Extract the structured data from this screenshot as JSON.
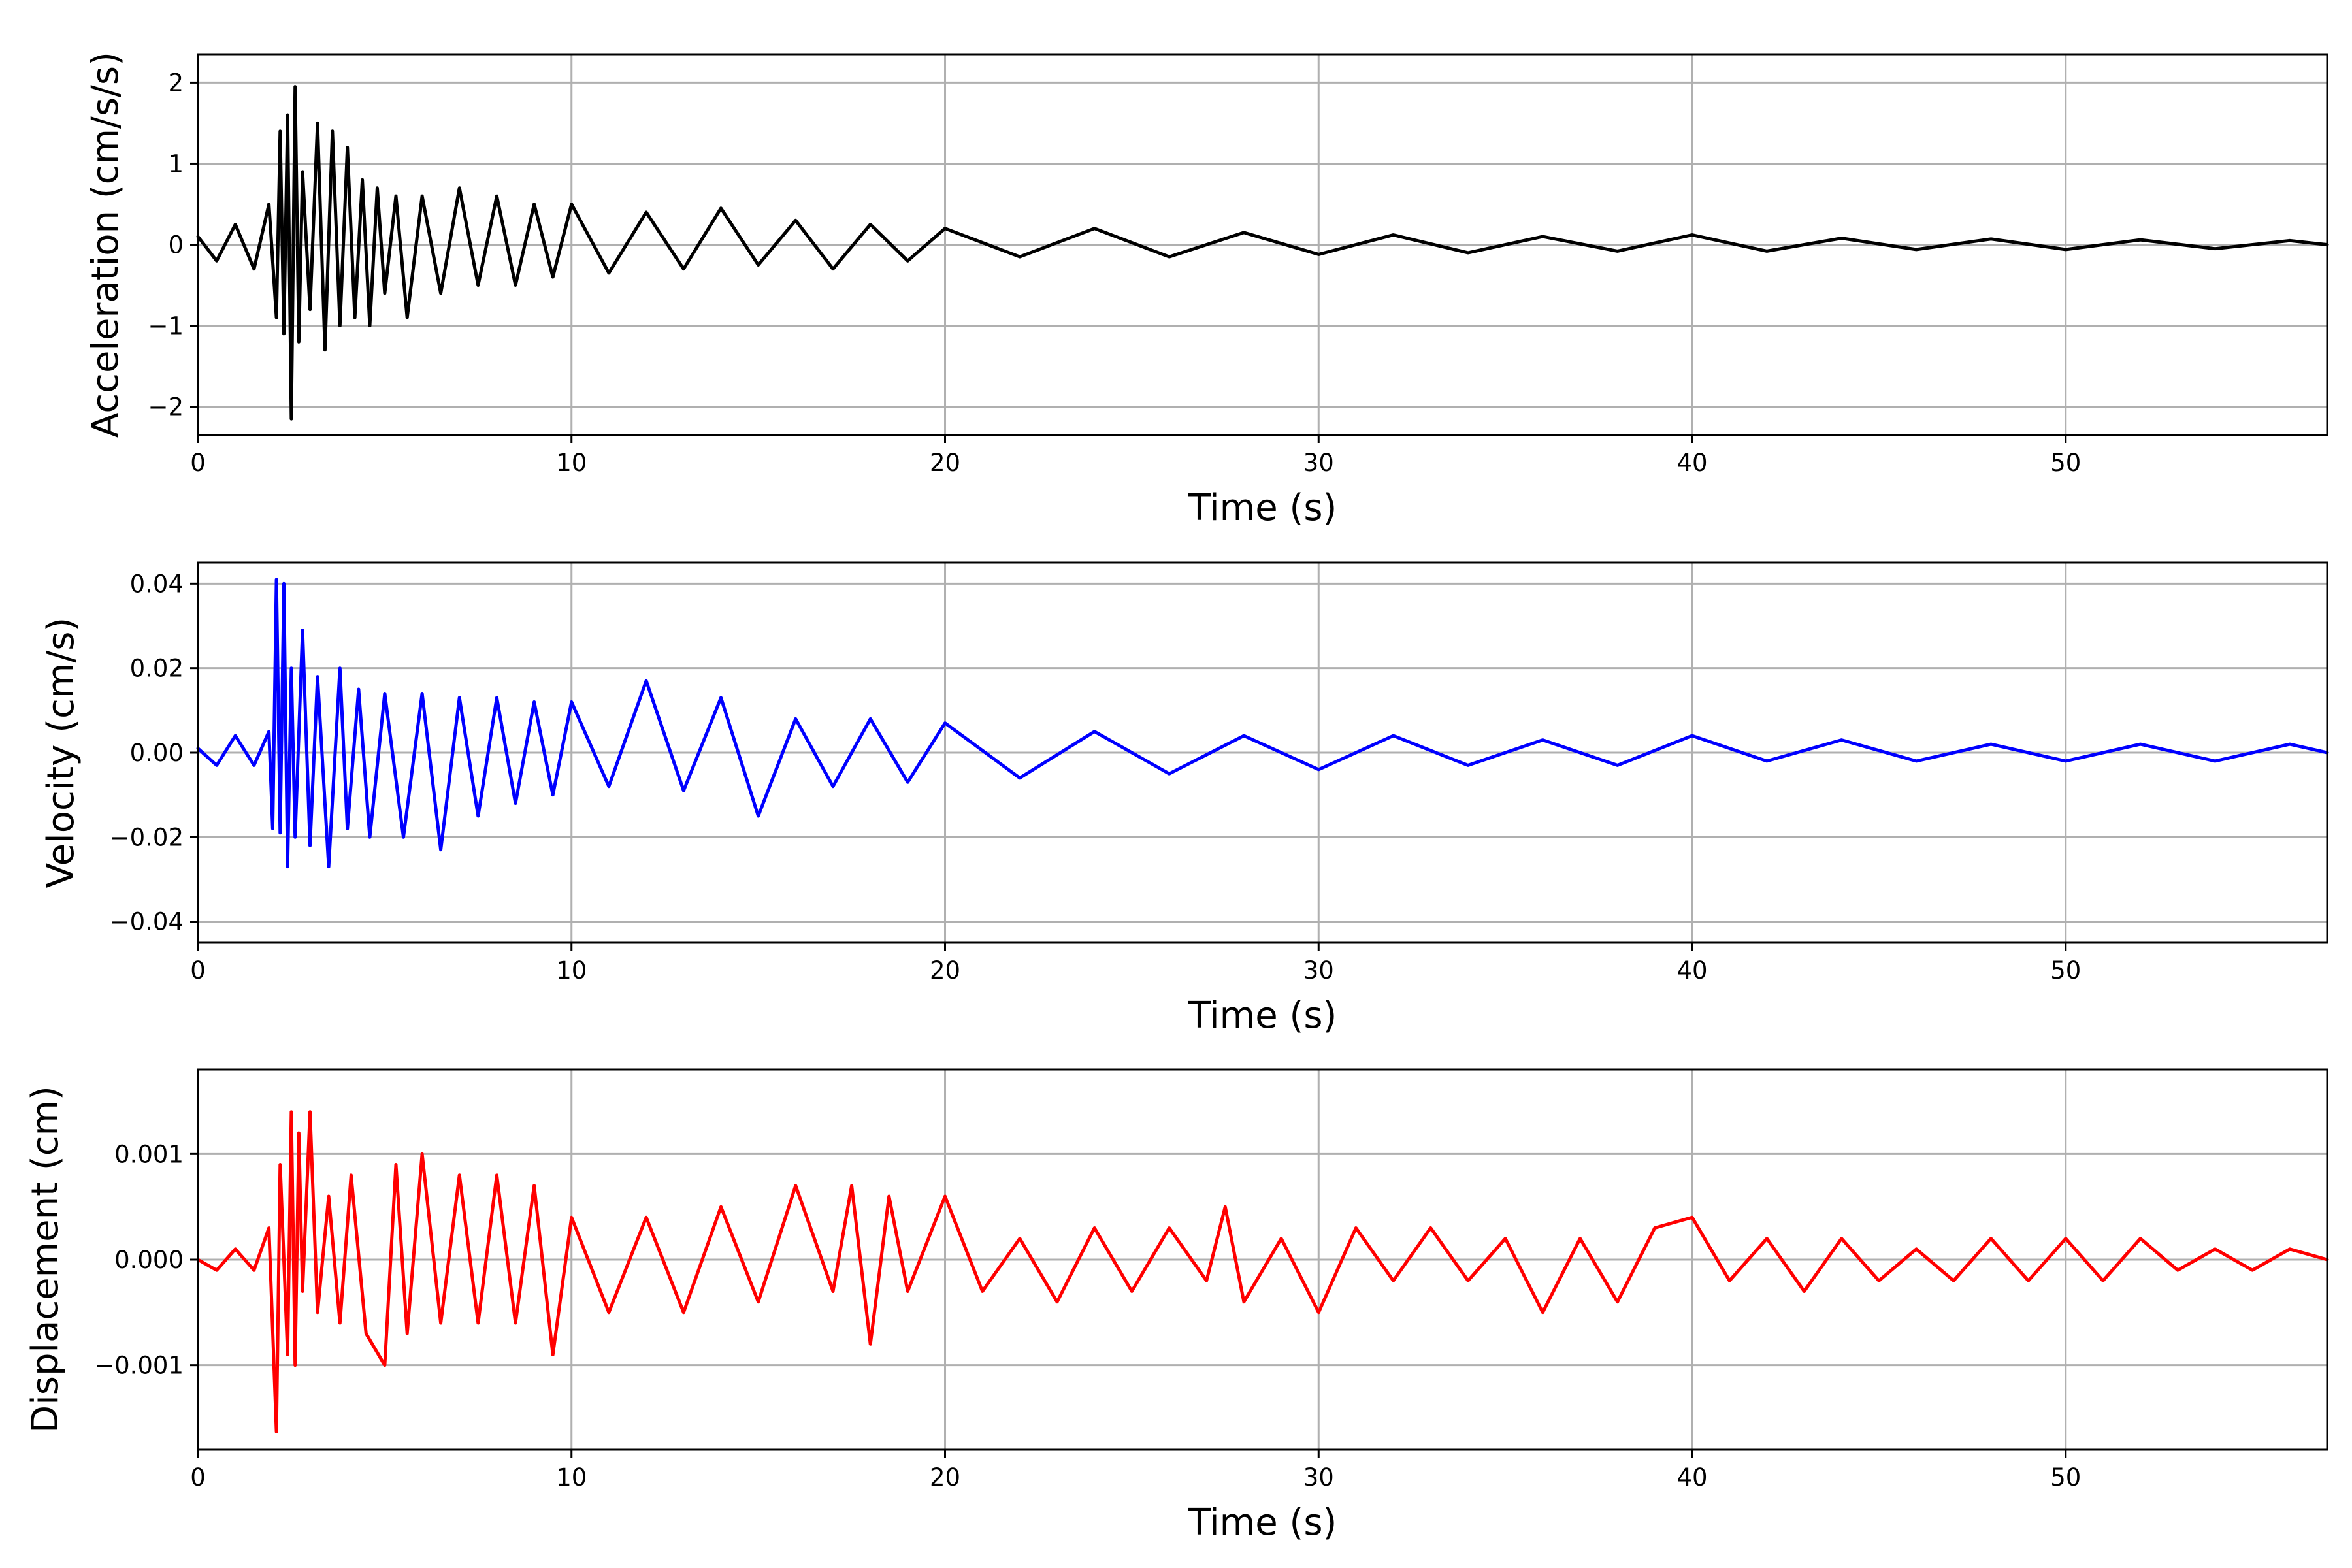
{
  "chart_data": [
    {
      "type": "line",
      "xlabel": "Time (s)",
      "ylabel": "Acceleration (cm/s/s)",
      "xlim": [
        0,
        57
      ],
      "ylim": [
        -2.35,
        2.35
      ],
      "grid": true,
      "x_ticks": [
        0,
        10,
        20,
        30,
        40,
        50
      ],
      "x_tick_labels": [
        "0",
        "10",
        "20",
        "30",
        "40",
        "50"
      ],
      "y_ticks": [
        -2,
        -1,
        0,
        1,
        2
      ],
      "y_tick_labels": [
        "−2",
        "−1",
        "0",
        "1",
        "2"
      ],
      "series": [
        {
          "color": "#000000",
          "x": [
            0,
            0.5,
            1.0,
            1.5,
            1.9,
            2.1,
            2.2,
            2.3,
            2.4,
            2.5,
            2.6,
            2.7,
            2.8,
            3.0,
            3.2,
            3.4,
            3.6,
            3.8,
            4.0,
            4.2,
            4.4,
            4.6,
            4.8,
            5.0,
            5.3,
            5.6,
            6.0,
            6.5,
            7.0,
            7.5,
            8.0,
            8.5,
            9.0,
            9.5,
            10.0,
            11,
            12,
            13,
            14,
            15,
            16,
            17,
            18,
            19,
            20,
            22,
            24,
            26,
            28,
            30,
            32,
            34,
            36,
            38,
            40,
            42,
            44,
            46,
            48,
            50,
            52,
            54,
            56,
            57
          ],
          "y": [
            0.1,
            -0.2,
            0.25,
            -0.3,
            0.5,
            -0.9,
            1.4,
            -1.1,
            1.6,
            -2.15,
            1.95,
            -1.2,
            0.9,
            -0.8,
            1.5,
            -1.3,
            1.4,
            -1.0,
            1.2,
            -0.9,
            0.8,
            -1.0,
            0.7,
            -0.6,
            0.6,
            -0.9,
            0.6,
            -0.6,
            0.7,
            -0.5,
            0.6,
            -0.5,
            0.5,
            -0.4,
            0.5,
            -0.35,
            0.4,
            -0.3,
            0.45,
            -0.25,
            0.3,
            -0.3,
            0.25,
            -0.2,
            0.2,
            -0.15,
            0.2,
            -0.15,
            0.15,
            -0.12,
            0.12,
            -0.1,
            0.1,
            -0.08,
            0.12,
            -0.08,
            0.08,
            -0.06,
            0.07,
            -0.06,
            0.06,
            -0.05,
            0.05,
            0.0
          ]
        }
      ]
    },
    {
      "type": "line",
      "xlabel": "Time (s)",
      "ylabel": "Velocity (cm/s)",
      "xlim": [
        0,
        57
      ],
      "ylim": [
        -0.045,
        0.045
      ],
      "grid": true,
      "x_ticks": [
        0,
        10,
        20,
        30,
        40,
        50
      ],
      "x_tick_labels": [
        "0",
        "10",
        "20",
        "30",
        "40",
        "50"
      ],
      "y_ticks": [
        -0.04,
        -0.02,
        0.0,
        0.02,
        0.04
      ],
      "y_tick_labels": [
        "−0.04",
        "−0.02",
        "0.00",
        "0.02",
        "0.04"
      ],
      "series": [
        {
          "color": "#0000ff",
          "x": [
            0,
            0.5,
            1.0,
            1.5,
            1.9,
            2.0,
            2.1,
            2.2,
            2.3,
            2.4,
            2.5,
            2.6,
            2.8,
            3.0,
            3.2,
            3.5,
            3.8,
            4.0,
            4.3,
            4.6,
            5.0,
            5.5,
            6.0,
            6.5,
            7.0,
            7.5,
            8.0,
            8.5,
            9.0,
            9.5,
            10,
            11,
            12,
            13,
            14,
            15,
            16,
            17,
            18,
            19,
            20,
            22,
            24,
            26,
            28,
            30,
            32,
            34,
            36,
            38,
            40,
            42,
            44,
            46,
            48,
            50,
            52,
            54,
            56,
            57
          ],
          "y": [
            0.001,
            -0.003,
            0.004,
            -0.003,
            0.005,
            -0.018,
            0.041,
            -0.019,
            0.04,
            -0.027,
            0.02,
            -0.02,
            0.029,
            -0.022,
            0.018,
            -0.027,
            0.02,
            -0.018,
            0.015,
            -0.02,
            0.014,
            -0.02,
            0.014,
            -0.023,
            0.013,
            -0.015,
            0.013,
            -0.012,
            0.012,
            -0.01,
            0.012,
            -0.008,
            0.017,
            -0.009,
            0.013,
            -0.015,
            0.008,
            -0.008,
            0.008,
            -0.007,
            0.007,
            -0.006,
            0.005,
            -0.005,
            0.004,
            -0.004,
            0.004,
            -0.003,
            0.003,
            -0.003,
            0.004,
            -0.002,
            0.003,
            -0.002,
            0.002,
            -0.002,
            0.002,
            -0.002,
            0.002,
            0.0
          ]
        }
      ]
    },
    {
      "type": "line",
      "xlabel": "Time (s)",
      "ylabel": "Displacement (cm)",
      "xlim": [
        0,
        57
      ],
      "ylim": [
        -0.0018,
        0.0018
      ],
      "grid": true,
      "x_ticks": [
        0,
        10,
        20,
        30,
        40,
        50
      ],
      "x_tick_labels": [
        "0",
        "10",
        "20",
        "30",
        "40",
        "50"
      ],
      "y_ticks": [
        -0.001,
        0.0,
        0.001
      ],
      "y_tick_labels": [
        "−0.001",
        "0.000",
        "0.001"
      ],
      "series": [
        {
          "color": "#ff0000",
          "x": [
            0,
            0.5,
            1.0,
            1.5,
            1.9,
            2.1,
            2.2,
            2.4,
            2.5,
            2.6,
            2.7,
            2.8,
            3.0,
            3.2,
            3.5,
            3.8,
            4.1,
            4.5,
            5.0,
            5.3,
            5.6,
            6.0,
            6.5,
            7.0,
            7.5,
            8.0,
            8.5,
            9.0,
            9.5,
            10.0,
            11,
            12,
            13,
            14,
            15,
            16,
            17,
            17.5,
            18,
            18.5,
            19,
            20,
            21,
            22,
            23,
            24,
            25,
            26,
            27,
            27.5,
            28,
            29,
            30,
            31,
            32,
            33,
            34,
            35,
            36,
            37,
            38,
            39,
            40,
            41,
            42,
            43,
            44,
            45,
            46,
            47,
            48,
            49,
            50,
            51,
            52,
            53,
            54,
            55,
            56,
            57
          ],
          "y": [
            0.0,
            -0.0001,
            0.0001,
            -0.0001,
            0.0003,
            -0.00163,
            0.0009,
            -0.0009,
            0.0014,
            -0.001,
            0.0012,
            -0.0003,
            0.0014,
            -0.0005,
            0.0006,
            -0.0006,
            0.0008,
            -0.0007,
            -0.001,
            0.0009,
            -0.0007,
            0.001,
            -0.0006,
            0.0008,
            -0.0006,
            0.0008,
            -0.0006,
            0.0007,
            -0.0009,
            0.0004,
            -0.0005,
            0.0004,
            -0.0005,
            0.0005,
            -0.0004,
            0.0007,
            -0.0003,
            0.0007,
            -0.0008,
            0.0006,
            -0.0003,
            0.0006,
            -0.0003,
            0.0002,
            -0.0004,
            0.0003,
            -0.0003,
            0.0003,
            -0.0002,
            0.0005,
            -0.0004,
            0.0002,
            -0.0005,
            0.0003,
            -0.0002,
            0.0003,
            -0.0002,
            0.0002,
            -0.0005,
            0.0002,
            -0.0004,
            0.0003,
            0.0004,
            -0.0002,
            0.0002,
            -0.0003,
            0.0002,
            -0.0002,
            0.0001,
            -0.0002,
            0.0002,
            -0.0002,
            0.0002,
            -0.0002,
            0.0002,
            -0.0001,
            0.0001,
            -0.0001,
            0.0001,
            0.0
          ]
        }
      ]
    }
  ]
}
